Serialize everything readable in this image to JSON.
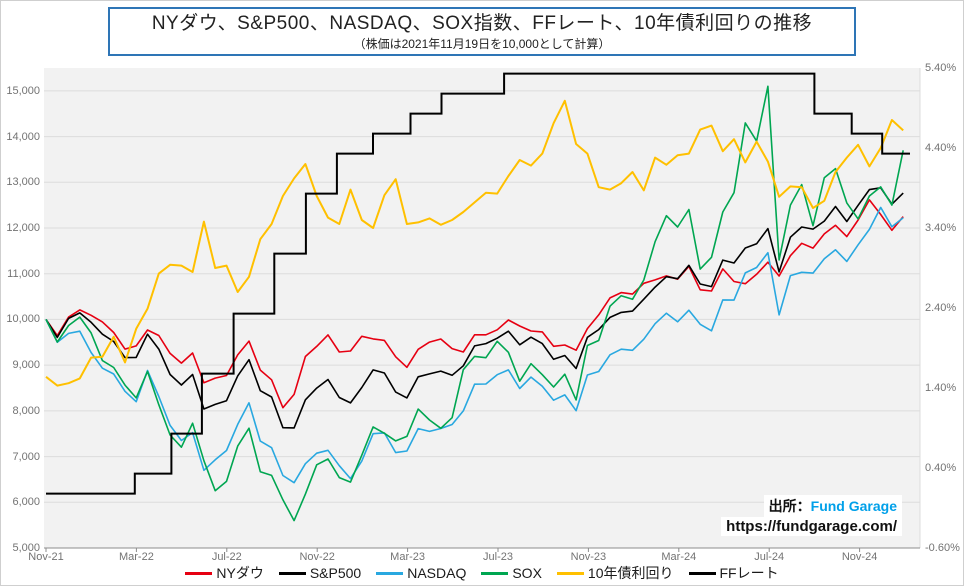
{
  "title": {
    "main": "NYダウ、S&P500、NASDAQ、SOX指数、FFレート、10年債利回りの推移",
    "subtitle": "（株価は2021年11月19日を10,000として計算）"
  },
  "source": {
    "label": "出所：",
    "name": "Fund Garage",
    "url": "https://fundgarage.com/"
  },
  "colors": {
    "plot_bg": "#f2f2f2",
    "gridline": "#dcdcdc",
    "axis": "#8c8c8c",
    "title_border": "#2e75b6",
    "brand": "#00a0e9",
    "nydow": "#e60012",
    "sp500": "#000000",
    "nasdaq": "#29a8e0",
    "sox": "#00a651",
    "us10y": "#ffc000",
    "ffrate": "#000000"
  },
  "chart_data": {
    "type": "line",
    "title": "NYダウ、S&P500、NASDAQ、SOX指数、FFレート、10年債利回りの推移",
    "note": "株価は2021年11月19日を10,000として計算",
    "x_range_months": [
      0,
      38.2
    ],
    "x_ticks": [
      {
        "label": "Nov-21",
        "t": 0
      },
      {
        "label": "Mar-22",
        "t": 4
      },
      {
        "label": "Jul-22",
        "t": 8
      },
      {
        "label": "Nov-22",
        "t": 12
      },
      {
        "label": "Mar-23",
        "t": 16
      },
      {
        "label": "Jul-23",
        "t": 20
      },
      {
        "label": "Nov-23",
        "t": 24
      },
      {
        "label": "Mar-24",
        "t": 28
      },
      {
        "label": "Jul-24",
        "t": 32
      },
      {
        "label": "Nov-24",
        "t": 36
      }
    ],
    "y_left": {
      "min": 5000,
      "max": 15500,
      "tick_values": [
        15000,
        14000,
        13000,
        12000,
        11000,
        10000,
        9000,
        8000,
        7000,
        6000,
        5000
      ],
      "tick_labels": [
        "15,000",
        "14,000",
        "13,000",
        "12,000",
        "11,000",
        "10,000",
        "9,000",
        "8,000",
        "7,000",
        "6,000",
        "5,000"
      ]
    },
    "y_right": {
      "min": -0.6,
      "max": 5.4,
      "tick_values": [
        5.4,
        4.4,
        3.4,
        2.4,
        1.4,
        0.4,
        -0.6
      ],
      "tick_labels": [
        "5.40%",
        "4.40%",
        "3.40%",
        "2.40%",
        "1.40%",
        "0.40%",
        "-0.60%"
      ]
    },
    "grid_values_left": [
      15000,
      14000,
      13000,
      12000,
      11000,
      10000,
      9000,
      8000,
      7000,
      6000
    ],
    "sample_interval": "semi-monthly from 2021-11-19 to 2025-01-17",
    "series": [
      {
        "key": "nydow",
        "name": "NYダウ",
        "axis": "left",
        "color": "#e60012",
        "width": 1.6,
        "values": [
          10000,
          9646,
          10050,
          10208,
          10090,
          9945,
          9714,
          9352,
          9422,
          9768,
          9648,
          9257,
          9044,
          9266,
          8614,
          8716,
          8773,
          9225,
          9525,
          8892,
          8680,
          8068,
          8360,
          9190,
          9409,
          9661,
          9287,
          9310,
          9632,
          9574,
          9542,
          9183,
          8953,
          9346,
          9505,
          9571,
          9362,
          9287,
          9664,
          9664,
          9774,
          9988,
          9856,
          9746,
          9727,
          9412,
          9441,
          9326,
          9800,
          10098,
          10471,
          10586,
          10554,
          10790,
          10864,
          10953,
          10880,
          11160,
          10648,
          10622,
          11106,
          10830,
          10781,
          10988,
          11252,
          10950,
          11394,
          11665,
          11561,
          11870,
          12060,
          11812,
          12174,
          12615,
          12295,
          11950,
          12250
        ]
      },
      {
        "key": "sp500",
        "name": "S&P500",
        "axis": "left",
        "color": "#000000",
        "width": 1.6,
        "values": [
          10000,
          9606,
          10023,
          10143,
          9937,
          9677,
          9517,
          9166,
          9170,
          9677,
          9351,
          8795,
          8565,
          8795,
          8040,
          8142,
          8223,
          8765,
          9120,
          8442,
          8304,
          7631,
          7627,
          8242,
          8497,
          8685,
          8293,
          8174,
          8512,
          8895,
          8829,
          8410,
          8284,
          8746,
          8808,
          8870,
          8778,
          8985,
          9421,
          9472,
          9589,
          9742,
          9446,
          9612,
          9472,
          9127,
          9212,
          8927,
          9608,
          9778,
          10045,
          10153,
          10183,
          10443,
          10707,
          10934,
          10892,
          11183,
          10774,
          10719,
          11298,
          11234,
          11562,
          11654,
          11986,
          11040,
          11799,
          12022,
          11975,
          12152,
          12471,
          12143,
          12497,
          12840,
          12880,
          12520,
          12763
        ]
      },
      {
        "key": "nasdaq",
        "name": "NASDAQ",
        "axis": "left",
        "color": "#29a8e0",
        "width": 1.6,
        "values": [
          10000,
          9500,
          9694,
          9743,
          9276,
          8934,
          8806,
          8428,
          8200,
          8882,
          8314,
          7682,
          7352,
          7524,
          6700,
          6930,
          7132,
          7703,
          8176,
          7339,
          7194,
          6587,
          6428,
          6843,
          7073,
          7138,
          6800,
          6518,
          6900,
          7500,
          7517,
          7087,
          7121,
          7612,
          7550,
          7614,
          7701,
          8000,
          8583,
          8587,
          8790,
          8896,
          8489,
          8739,
          8537,
          8233,
          8350,
          8004,
          8784,
          8860,
          9226,
          9349,
          9325,
          9567,
          9906,
          10136,
          9948,
          10201,
          9893,
          9752,
          10427,
          10422,
          11017,
          11135,
          11459,
          10100,
          10958,
          11032,
          11014,
          11328,
          11523,
          11270,
          11633,
          11969,
          12450,
          12026,
          12226
        ]
      },
      {
        "key": "sox",
        "name": "SOX",
        "axis": "left",
        "color": "#00a651",
        "width": 1.6,
        "values": [
          10000,
          9506,
          9867,
          10051,
          9705,
          9100,
          8949,
          8563,
          8283,
          8863,
          8135,
          7471,
          7204,
          7731,
          6909,
          6253,
          6456,
          7229,
          7621,
          6670,
          6588,
          6054,
          5600,
          6179,
          6820,
          6947,
          6540,
          6441,
          7029,
          7650,
          7509,
          7342,
          7441,
          8039,
          7800,
          7619,
          7851,
          8900,
          9191,
          9163,
          9522,
          9280,
          8649,
          9031,
          8791,
          8522,
          8801,
          8240,
          9430,
          9539,
          10290,
          10520,
          10440,
          10862,
          11700,
          12268,
          12022,
          12404,
          11100,
          11360,
          12350,
          12772,
          14300,
          13901,
          15100,
          11300,
          12500,
          12950,
          12050,
          13100,
          13300,
          12550,
          12200,
          12700,
          12900,
          12500,
          13700
        ]
      },
      {
        "key": "us10y",
        "name": "10年債利回り",
        "axis": "right",
        "color": "#ffc000",
        "width": 2,
        "values": [
          1.54,
          1.43,
          1.46,
          1.52,
          1.78,
          1.79,
          2.04,
          1.72,
          2.14,
          2.39,
          2.83,
          2.94,
          2.93,
          2.85,
          3.48,
          2.9,
          2.93,
          2.6,
          2.79,
          3.26,
          3.45,
          3.8,
          4.02,
          4.2,
          3.8,
          3.53,
          3.45,
          3.88,
          3.5,
          3.4,
          3.81,
          4.01,
          3.45,
          3.47,
          3.52,
          3.44,
          3.5,
          3.6,
          3.72,
          3.84,
          3.83,
          4.05,
          4.25,
          4.18,
          4.33,
          4.71,
          4.99,
          4.45,
          4.33,
          3.91,
          3.88,
          3.96,
          4.1,
          3.87,
          4.28,
          4.19,
          4.31,
          4.33,
          4.63,
          4.68,
          4.36,
          4.51,
          4.22,
          4.48,
          4.23,
          3.79,
          3.92,
          3.91,
          3.65,
          3.74,
          4.1,
          4.28,
          4.44,
          4.17,
          4.4,
          4.75,
          4.62
        ]
      },
      {
        "key": "ffrate",
        "name": "FFレート",
        "axis": "right",
        "color": "#000000",
        "width": 2,
        "step": true,
        "points": [
          [
            0,
            0.08
          ],
          [
            3.93,
            0.33
          ],
          [
            5.55,
            0.83
          ],
          [
            6.9,
            1.58
          ],
          [
            8.3,
            2.33
          ],
          [
            10.1,
            3.08
          ],
          [
            11.5,
            3.83
          ],
          [
            12.87,
            4.33
          ],
          [
            14.47,
            4.58
          ],
          [
            16.13,
            4.83
          ],
          [
            17.5,
            5.08
          ],
          [
            20.27,
            5.33
          ],
          [
            34.0,
            4.83
          ],
          [
            35.65,
            4.58
          ],
          [
            37.0,
            4.33
          ],
          [
            38.2,
            4.33
          ]
        ]
      }
    ],
    "legend_position": "bottom"
  }
}
